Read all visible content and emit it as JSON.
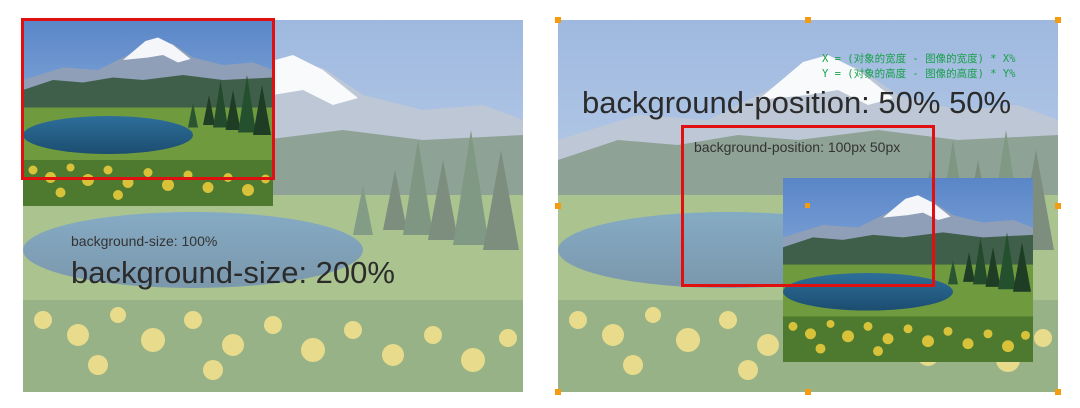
{
  "left": {
    "label_small": "background-size: 100%",
    "label_large": "background-size: 200%"
  },
  "right": {
    "formula_x": "X = (对象的宽度 - 图像的宽度) * X%",
    "formula_y": "Y = (对象的高度 - 图像的高度) * Y%",
    "label_large": "background-position: 50% 50%",
    "label_small": "background-position: 100px 50px"
  },
  "colors": {
    "highlight_border": "#e01010",
    "handle": "#f39c12",
    "formula_text": "#19a04a"
  }
}
